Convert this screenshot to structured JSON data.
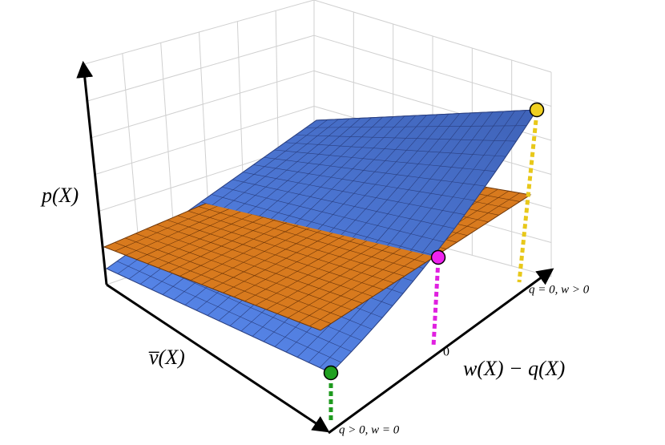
{
  "labels": {
    "vertical_axis": "p(X)",
    "left_axis": "v̅(X)",
    "right_axis": "w(X) − q(X)",
    "zero": "0",
    "right_end": "q = 0, w > 0",
    "front_corner": "q > 0, w = 0"
  }
}
